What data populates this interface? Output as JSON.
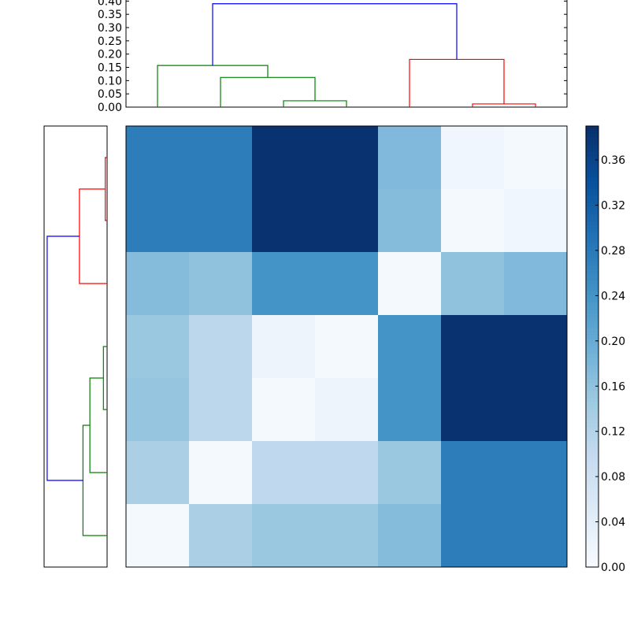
{
  "chart_data": [
    {
      "type": "dendrogram",
      "orientation": "top",
      "ylim": [
        0,
        0.41
      ],
      "yticks": [
        0.0,
        0.05,
        0.1,
        0.15,
        0.2,
        0.25,
        0.3,
        0.35,
        0.4
      ],
      "ytick_labels": [
        "0.00",
        "0.05",
        "0.10",
        "0.15",
        "0.20",
        "0.25",
        "0.30",
        "0.35",
        "0.40"
      ],
      "leaf_count": 7,
      "links": [
        {
          "left": 2.5,
          "right": 3.5,
          "height": 0.024,
          "left_bottom": 0,
          "right_bottom": 0,
          "color": "#008000"
        },
        {
          "left": 1.5,
          "right": 3.0,
          "height": 0.112,
          "left_bottom": 0,
          "right_bottom": 0.024,
          "color": "#008000"
        },
        {
          "left": 0.5,
          "right": 2.25,
          "height": 0.157,
          "left_bottom": 0,
          "right_bottom": 0.112,
          "color": "#008000"
        },
        {
          "left": 5.5,
          "right": 6.5,
          "height": 0.012,
          "left_bottom": 0,
          "right_bottom": 0,
          "color": "#ff0000"
        },
        {
          "left": 4.5,
          "right": 6.0,
          "height": 0.18,
          "left_bottom": 0,
          "right_bottom": 0.012,
          "color": "#ff0000"
        },
        {
          "left": 1.375,
          "right": 5.25,
          "height": 0.39,
          "left_bottom": 0.157,
          "right_bottom": 0.18,
          "color": "#0000ff"
        }
      ]
    },
    {
      "type": "dendrogram",
      "orientation": "left",
      "xlim": [
        0,
        0.41
      ],
      "leaf_count": 7,
      "links": [
        {
          "top": 0.0,
          "bottom": 1.0,
          "height": 0.012,
          "top_end": 0,
          "bottom_end": 0,
          "color": "#ff0000"
        },
        {
          "top": 0.5,
          "bottom": 2.0,
          "height": 0.18,
          "top_end": 0.012,
          "bottom_end": 0,
          "color": "#ff0000"
        },
        {
          "top": 3.0,
          "bottom": 4.0,
          "height": 0.024,
          "top_end": 0,
          "bottom_end": 0,
          "color": "#008000"
        },
        {
          "top": 3.5,
          "bottom": 5.0,
          "height": 0.112,
          "top_end": 0.024,
          "bottom_end": 0,
          "color": "#008000"
        },
        {
          "top": 4.25,
          "bottom": 6.0,
          "height": 0.157,
          "top_end": 0.112,
          "bottom_end": 0,
          "color": "#008000"
        },
        {
          "top": 1.25,
          "bottom": 5.125,
          "height": 0.39,
          "top_end": 0.18,
          "bottom_end": 0.157,
          "color": "#0000ff"
        }
      ]
    },
    {
      "type": "heatmap",
      "colormap": "Blues",
      "vmin": 0.0,
      "vmax": 0.39,
      "rows": 7,
      "cols": 7,
      "values": [
        [
          0.275,
          0.275,
          0.385,
          0.385,
          0.175,
          0.015,
          0.005
        ],
        [
          0.275,
          0.275,
          0.385,
          0.385,
          0.17,
          0.005,
          0.015
        ],
        [
          0.17,
          0.16,
          0.24,
          0.24,
          0.005,
          0.16,
          0.175
        ],
        [
          0.15,
          0.11,
          0.02,
          0.005,
          0.24,
          0.385,
          0.385
        ],
        [
          0.155,
          0.11,
          0.005,
          0.02,
          0.24,
          0.385,
          0.385
        ],
        [
          0.13,
          0.005,
          0.105,
          0.105,
          0.15,
          0.275,
          0.275
        ],
        [
          0.005,
          0.13,
          0.15,
          0.15,
          0.17,
          0.275,
          0.275
        ]
      ]
    },
    {
      "type": "colorbar",
      "vmin": 0.0,
      "vmax": 0.39,
      "ticks": [
        0.0,
        0.04,
        0.08,
        0.12,
        0.16,
        0.2,
        0.24,
        0.28,
        0.32,
        0.36
      ],
      "tick_labels": [
        "0.00",
        "0.04",
        "0.08",
        "0.12",
        "0.16",
        "0.20",
        "0.24",
        "0.28",
        "0.32",
        "0.36"
      ]
    }
  ]
}
